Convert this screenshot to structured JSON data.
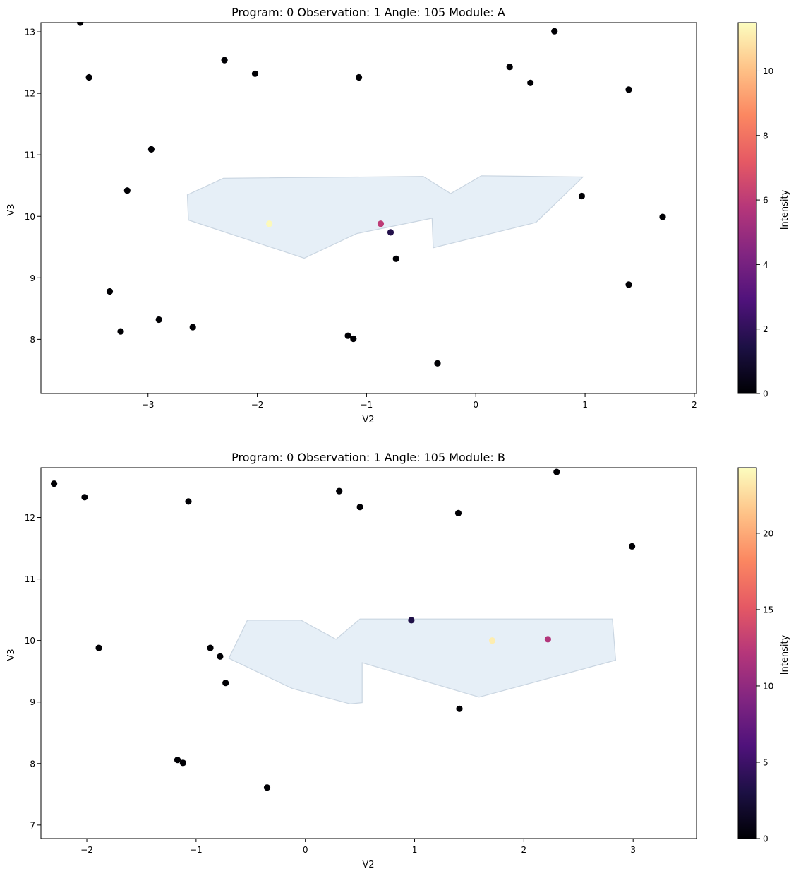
{
  "colormap": "magma",
  "chart_data": [
    {
      "type": "scatter",
      "title": "Program: 0 Observation: 1 Angle: 105 Module: A",
      "xlabel": "V2",
      "ylabel": "V3",
      "xlim": [
        -3.98,
        2.02
      ],
      "ylim": [
        7.12,
        13.15
      ],
      "xticks": [
        -3,
        -2,
        -1,
        0,
        1,
        2
      ],
      "xtick_labels": [
        "−3",
        "−2",
        "−1",
        "0",
        "1",
        "2"
      ],
      "yticks": [
        8,
        9,
        10,
        11,
        12,
        13
      ],
      "ytick_labels": [
        "8",
        "9",
        "10",
        "11",
        "12",
        "13"
      ],
      "colorbar": {
        "label": "Intensity",
        "range": [
          0,
          11.5
        ],
        "ticks": [
          0,
          2,
          4,
          6,
          8,
          10
        ],
        "tick_labels": [
          "0",
          "2",
          "4",
          "6",
          "8",
          "10"
        ]
      },
      "footprint": {
        "fill": "#e6eff7",
        "stroke": "#c9d5e1",
        "polygon": [
          [
            -2.64,
            10.35
          ],
          [
            -2.31,
            10.62
          ],
          [
            -0.48,
            10.65
          ],
          [
            -0.23,
            10.37
          ],
          [
            0.05,
            10.66
          ],
          [
            0.98,
            10.64
          ],
          [
            0.55,
            9.9
          ],
          [
            -0.39,
            9.49
          ],
          [
            -0.4,
            9.97
          ],
          [
            -1.09,
            9.72
          ],
          [
            -1.57,
            9.32
          ],
          [
            -2.63,
            9.94
          ]
        ]
      },
      "points": [
        {
          "x": -3.62,
          "y": 13.15,
          "v": 0
        },
        {
          "x": -3.54,
          "y": 12.26,
          "v": 0
        },
        {
          "x": -2.3,
          "y": 12.54,
          "v": 0
        },
        {
          "x": -2.02,
          "y": 12.32,
          "v": 0
        },
        {
          "x": -1.07,
          "y": 12.26,
          "v": 0
        },
        {
          "x": 0.31,
          "y": 12.43,
          "v": 0
        },
        {
          "x": 0.72,
          "y": 13.01,
          "v": 0
        },
        {
          "x": 0.5,
          "y": 12.17,
          "v": 0
        },
        {
          "x": 1.4,
          "y": 12.06,
          "v": 0
        },
        {
          "x": -2.97,
          "y": 11.09,
          "v": 0
        },
        {
          "x": -3.19,
          "y": 10.42,
          "v": 0
        },
        {
          "x": 0.97,
          "y": 10.33,
          "v": 0
        },
        {
          "x": 1.71,
          "y": 9.99,
          "v": 0
        },
        {
          "x": -0.73,
          "y": 9.31,
          "v": 0
        },
        {
          "x": -3.35,
          "y": 8.78,
          "v": 0
        },
        {
          "x": 1.4,
          "y": 8.89,
          "v": 0
        },
        {
          "x": -3.25,
          "y": 8.13,
          "v": 0
        },
        {
          "x": -2.9,
          "y": 8.32,
          "v": 0
        },
        {
          "x": -2.59,
          "y": 8.2,
          "v": 0
        },
        {
          "x": -1.17,
          "y": 8.06,
          "v": 0
        },
        {
          "x": -1.12,
          "y": 8.01,
          "v": 0
        },
        {
          "x": -0.35,
          "y": 7.61,
          "v": 0
        },
        {
          "x": -1.89,
          "y": 9.88,
          "v": 11.4
        },
        {
          "x": -0.87,
          "y": 9.88,
          "v": 6.0
        },
        {
          "x": -0.78,
          "y": 9.74,
          "v": 1.6
        }
      ]
    },
    {
      "type": "scatter",
      "title": "Program: 0 Observation: 1 Angle: 105 Module: B",
      "xlabel": "V2",
      "ylabel": "V3",
      "xlim": [
        -2.42,
        3.58
      ],
      "ylim": [
        6.78,
        12.81
      ],
      "xticks": [
        -2,
        -1,
        0,
        1,
        2,
        3
      ],
      "xtick_labels": [
        "−2",
        "−1",
        "0",
        "1",
        "2",
        "3"
      ],
      "yticks": [
        7,
        8,
        9,
        10,
        11,
        12
      ],
      "ytick_labels": [
        "7",
        "8",
        "9",
        "10",
        "11",
        "12"
      ],
      "colorbar": {
        "label": "Intensity",
        "range": [
          0,
          24.3
        ],
        "ticks": [
          0,
          5,
          10,
          15,
          20
        ],
        "tick_labels": [
          "0",
          "5",
          "10",
          "15",
          "20"
        ]
      },
      "footprint": {
        "fill": "#e6eff7",
        "stroke": "#c9d5e1",
        "polygon": [
          [
            -0.53,
            10.33
          ],
          [
            -0.04,
            10.33
          ],
          [
            0.28,
            10.02
          ],
          [
            0.5,
            10.35
          ],
          [
            2.81,
            10.35
          ],
          [
            2.84,
            9.68
          ],
          [
            1.59,
            9.08
          ],
          [
            0.52,
            9.64
          ],
          [
            0.52,
            8.99
          ],
          [
            0.41,
            8.97
          ],
          [
            -0.12,
            9.22
          ],
          [
            -0.7,
            9.71
          ]
        ]
      },
      "points": [
        {
          "x": -2.3,
          "y": 12.55,
          "v": 0
        },
        {
          "x": -2.02,
          "y": 12.33,
          "v": 0
        },
        {
          "x": -1.07,
          "y": 12.26,
          "v": 0
        },
        {
          "x": 0.31,
          "y": 12.43,
          "v": 0
        },
        {
          "x": 0.5,
          "y": 12.17,
          "v": 0
        },
        {
          "x": 1.4,
          "y": 12.07,
          "v": 0
        },
        {
          "x": 2.3,
          "y": 12.74,
          "v": 0
        },
        {
          "x": 2.99,
          "y": 11.53,
          "v": 0
        },
        {
          "x": -1.89,
          "y": 9.88,
          "v": 0
        },
        {
          "x": -0.87,
          "y": 9.88,
          "v": 0
        },
        {
          "x": -0.78,
          "y": 9.74,
          "v": 0
        },
        {
          "x": -0.73,
          "y": 9.31,
          "v": 0
        },
        {
          "x": 1.41,
          "y": 8.89,
          "v": 0
        },
        {
          "x": -1.17,
          "y": 8.06,
          "v": 0
        },
        {
          "x": -1.12,
          "y": 8.01,
          "v": 0
        },
        {
          "x": -0.35,
          "y": 7.61,
          "v": 0
        },
        {
          "x": 0.97,
          "y": 10.33,
          "v": 3.2
        },
        {
          "x": 1.71,
          "y": 10.0,
          "v": 23.5
        },
        {
          "x": 2.22,
          "y": 10.02,
          "v": 12.0
        }
      ]
    }
  ]
}
